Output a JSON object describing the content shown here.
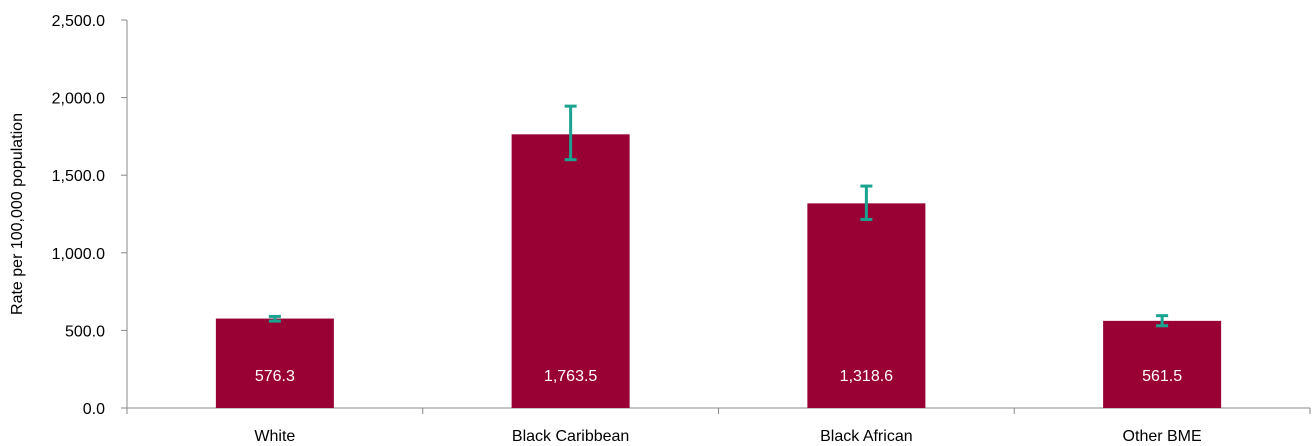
{
  "chart_data": {
    "type": "bar",
    "categories": [
      "White",
      "Black Caribbean",
      "Black African",
      "Other BME"
    ],
    "values": [
      576.3,
      1763.5,
      1318.6,
      561.5
    ],
    "data_labels": [
      "576.3",
      "1,763.5",
      "1,318.6",
      "561.5"
    ],
    "error_bars": [
      {
        "low": 560.0,
        "high": 590.0
      },
      {
        "low": 1600.0,
        "high": 1945.0
      },
      {
        "low": 1215.0,
        "high": 1430.0
      },
      {
        "low": 530.0,
        "high": 595.0
      }
    ],
    "ylabel": "Rate per 100,000 population",
    "xlabel": "",
    "ylim": [
      0,
      2500
    ],
    "yticks": [
      0,
      500,
      1000,
      1500,
      2000,
      2500
    ],
    "ytick_labels": [
      "0.0",
      "500.0",
      "1,000.0",
      "1,500.0",
      "2,000.0",
      "2,500.0"
    ],
    "grid": false,
    "legend": "none",
    "colors": {
      "bar": "#990033",
      "error_bar": "#1aa390",
      "axis": "#888888",
      "data_label": "#ffffff"
    }
  }
}
